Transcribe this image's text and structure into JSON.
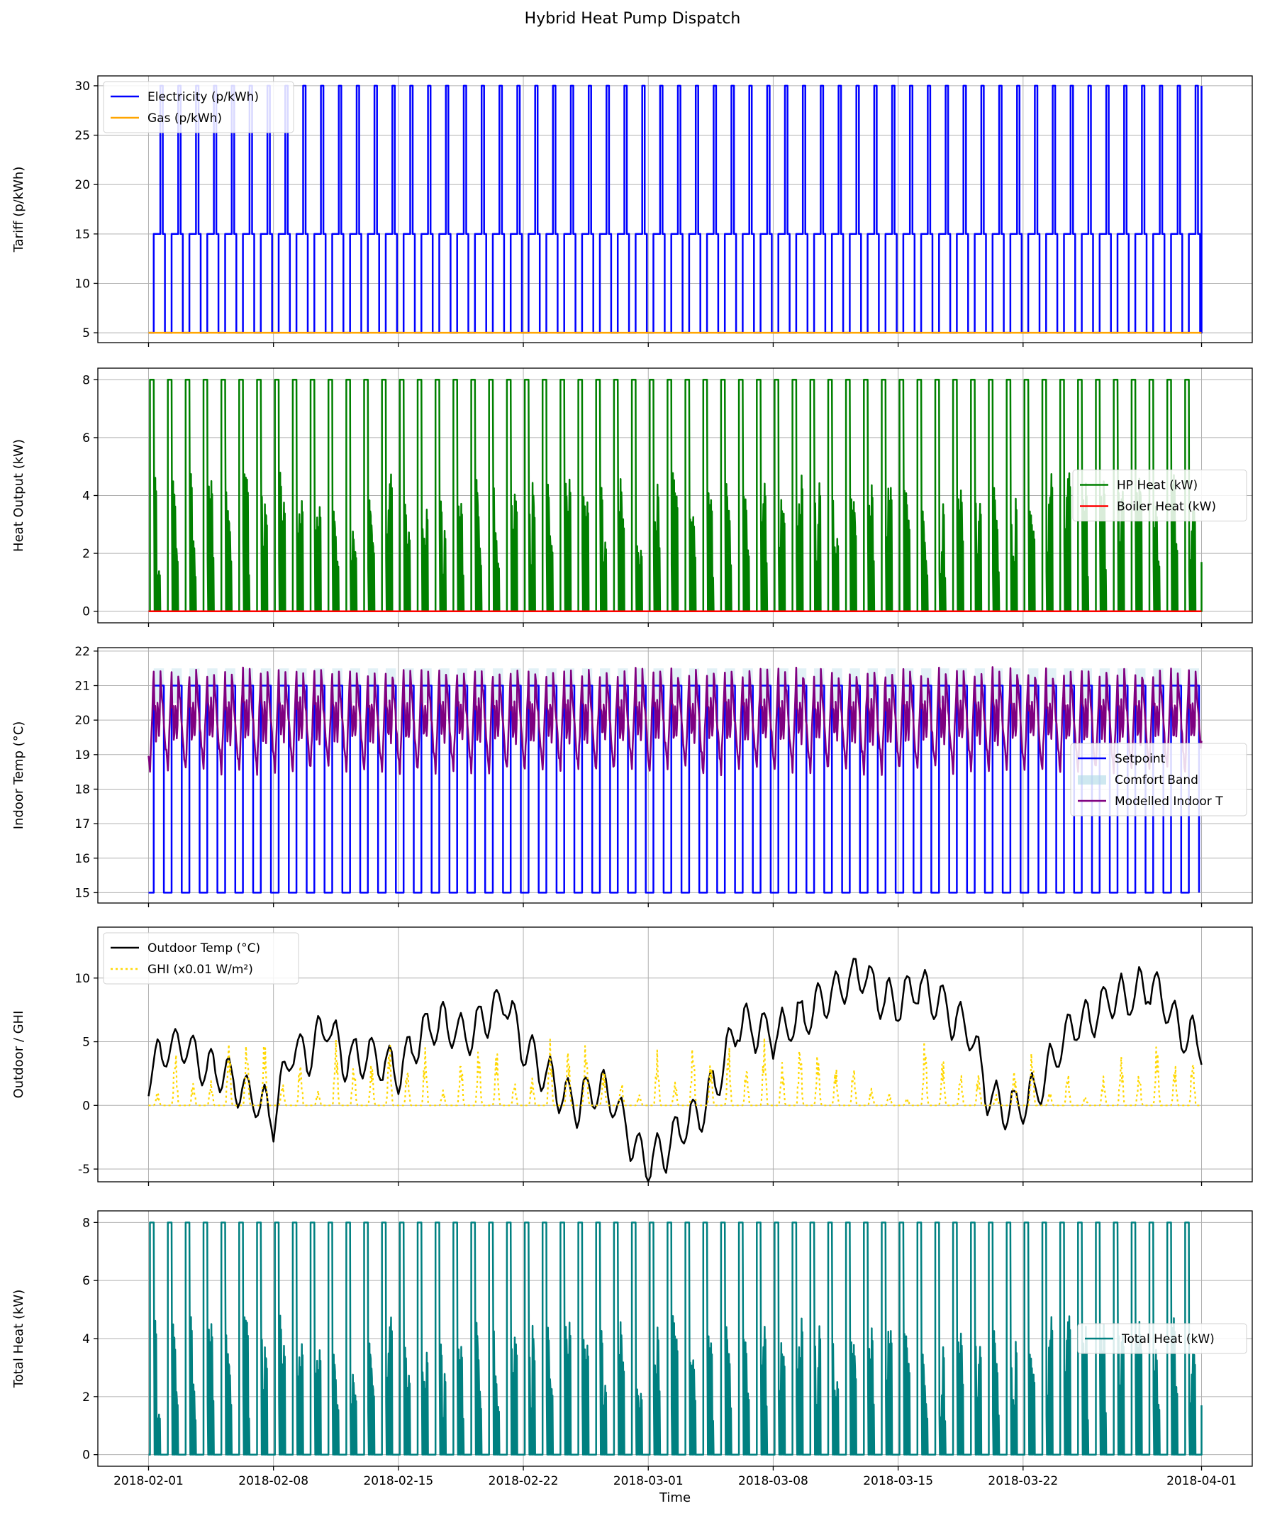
{
  "figure": {
    "title": "Hybrid Heat Pump Dispatch"
  },
  "colors": {
    "electricity": "#0000ff",
    "gas": "#ffa500",
    "hp": "#008000",
    "boiler": "#ff0000",
    "setpoint": "#0000ff",
    "comfort": "#add8e6",
    "indoor": "#800080",
    "outdoor": "#000000",
    "ghi": "#ffd700",
    "total": "#008080",
    "grid": "#b0b0b0"
  },
  "chart_data": [
    {
      "type": "line",
      "ylabel": "Tariff (p/kWh)",
      "xlabel": "",
      "xlim": [
        "2018-02-01",
        "2018-04-01"
      ],
      "ylim": [
        4,
        31
      ],
      "yticks": [
        5,
        10,
        15,
        20,
        25,
        30
      ],
      "legend": "upper-left",
      "series": [
        {
          "name": "Electricity (p/kWh)",
          "color": "#0000ff",
          "pattern": "daily step: 5 p/kWh overnight, 15 p/kWh daytime, 30 p/kWh evening peak"
        },
        {
          "name": "Gas (p/kWh)",
          "color": "#ffa500",
          "constant": 5
        }
      ]
    },
    {
      "type": "line",
      "ylabel": "Heat Output (kW)",
      "xlabel": "",
      "xlim": [
        "2018-02-01",
        "2018-04-01"
      ],
      "ylim": [
        -0.4,
        8.4
      ],
      "yticks": [
        0,
        2,
        4,
        6,
        8
      ],
      "legend": "center-right",
      "series": [
        {
          "name": "HP Heat (kW)",
          "color": "#008000",
          "pattern": "daily: preheat at 8 kW, then modulating 1.5–5 kW, off during peak"
        },
        {
          "name": "Boiler Heat (kW)",
          "color": "#ff0000",
          "constant": 0
        }
      ]
    },
    {
      "type": "line",
      "ylabel": "Indoor Temp (°C)",
      "xlabel": "",
      "xlim": [
        "2018-02-01",
        "2018-04-01"
      ],
      "ylim": [
        14.7,
        22.1
      ],
      "yticks": [
        15,
        16,
        17,
        18,
        19,
        20,
        21,
        22
      ],
      "legend": "lower-right",
      "series": [
        {
          "name": "Setpoint",
          "color": "#0000ff",
          "pattern": "daily step: 21 °C daytime, 15 °C setback"
        },
        {
          "name": "Comfort Band",
          "color": "#add8e6",
          "band": [
            20.5,
            21.5
          ]
        },
        {
          "name": "Modelled Indoor T",
          "color": "#800080",
          "range": [
            18.4,
            21.7
          ]
        }
      ]
    },
    {
      "type": "line",
      "ylabel": "Outdoor / GHI",
      "xlabel": "",
      "xlim": [
        "2018-02-01",
        "2018-04-01"
      ],
      "ylim": [
        -6,
        14
      ],
      "yticks": [
        -5,
        0,
        5,
        10
      ],
      "legend": "upper-left",
      "series": [
        {
          "name": "Outdoor Temp (°C)",
          "color": "#000000",
          "anchors": [
            [
              0,
              2.3
            ],
            [
              1,
              4.5
            ],
            [
              2,
              4.8
            ],
            [
              3,
              3.0
            ],
            [
              4,
              2.5
            ],
            [
              5,
              1.5
            ],
            [
              6,
              0.5
            ],
            [
              7,
              -1.0
            ],
            [
              8,
              4.5
            ],
            [
              9,
              4.0
            ],
            [
              10,
              6.5
            ],
            [
              11,
              3.5
            ],
            [
              12,
              4.0
            ],
            [
              13,
              3.5
            ],
            [
              14,
              2.5
            ],
            [
              15,
              5.0
            ],
            [
              16,
              6.5
            ],
            [
              17,
              6.0
            ],
            [
              18,
              5.5
            ],
            [
              19,
              7.0
            ],
            [
              20,
              8.5
            ],
            [
              21,
              4.5
            ],
            [
              22,
              3.0
            ],
            [
              23,
              1.0
            ],
            [
              24,
              0.0
            ],
            [
              25,
              1.5
            ],
            [
              26,
              0.5
            ],
            [
              27,
              -2.5
            ],
            [
              28,
              -4.5
            ],
            [
              29,
              -3.5
            ],
            [
              30,
              -1.5
            ],
            [
              31,
              -0.5
            ],
            [
              32,
              2.5
            ],
            [
              33,
              6.5
            ],
            [
              34,
              6.0
            ],
            [
              35,
              5.5
            ],
            [
              36,
              6.5
            ],
            [
              37,
              7.0
            ],
            [
              38,
              8.5
            ],
            [
              39,
              9.5
            ],
            [
              40,
              10.5
            ],
            [
              41,
              8.5
            ],
            [
              42,
              8.0
            ],
            [
              43,
              9.5
            ],
            [
              44,
              8.5
            ],
            [
              45,
              7.0
            ],
            [
              46,
              6.0
            ],
            [
              47,
              1.0
            ],
            [
              48,
              -0.5
            ],
            [
              49,
              0.0
            ],
            [
              50,
              1.5
            ],
            [
              51,
              4.5
            ],
            [
              52,
              6.5
            ],
            [
              53,
              7.0
            ],
            [
              54,
              8.5
            ],
            [
              55,
              8.5
            ],
            [
              56,
              9.5
            ],
            [
              57,
              8.0
            ],
            [
              58,
              5.5
            ],
            [
              59,
              5.0
            ]
          ]
        },
        {
          "name": "GHI (x0.01 W/m²)",
          "color": "#ffd700",
          "pattern": "daily pulse, peak 0.5–6"
        }
      ]
    },
    {
      "type": "line",
      "ylabel": "Total Heat (kW)",
      "xlabel": "Time",
      "xlim": [
        "2018-02-01",
        "2018-04-01"
      ],
      "xticks": [
        "2018-02-01",
        "2018-02-08",
        "2018-02-15",
        "2018-02-22",
        "2018-03-01",
        "2018-03-08",
        "2018-03-15",
        "2018-03-22",
        "2018-04-01"
      ],
      "ylim": [
        -0.4,
        8.4
      ],
      "yticks": [
        0,
        2,
        4,
        6,
        8
      ],
      "legend": "center-right",
      "series": [
        {
          "name": "Total Heat (kW)",
          "color": "#008080",
          "pattern": "same as HP Heat (boiler is zero)"
        }
      ]
    }
  ]
}
